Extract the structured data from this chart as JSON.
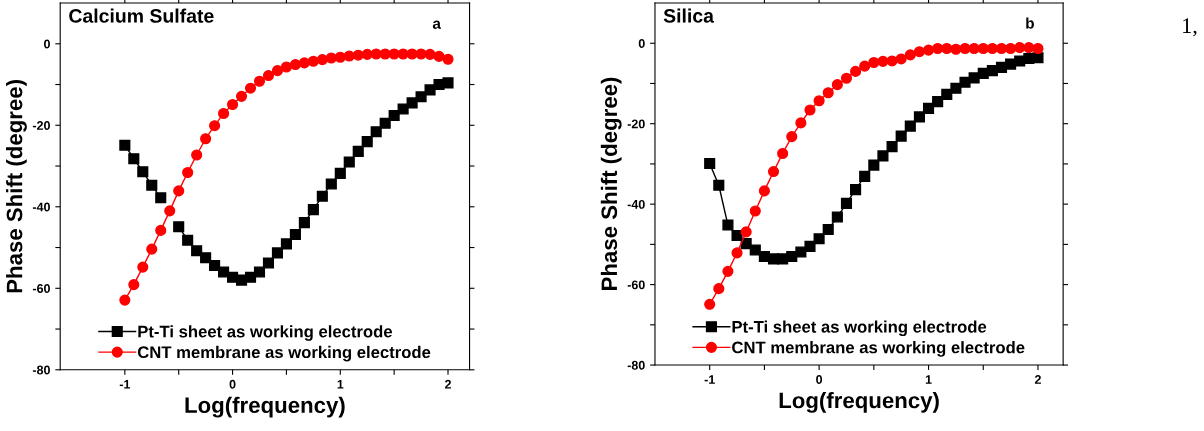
{
  "chart_data": [
    {
      "type": "line",
      "xlabel": "Log(frequency)",
      "ylabel": "Phase Shift (degree)",
      "annotations": [
        "Calcium Sulfate",
        "a"
      ],
      "xlim": [
        -1.6,
        2.2
      ],
      "ylim": [
        -80,
        10
      ],
      "xticks": [
        -1,
        {
          "value": -0.5,
          "label": null
        },
        0,
        {
          "value": 0.5,
          "label": null
        },
        1,
        {
          "value": 1.5,
          "label": null
        },
        2
      ],
      "yticks": [
        -80,
        {
          "value": -70,
          "label": null
        },
        -60,
        {
          "value": -50,
          "label": null
        },
        -40,
        {
          "value": -30,
          "label": null
        },
        -20,
        {
          "value": -10,
          "label": null
        },
        0
      ],
      "x": [
        -1.0,
        -0.9167,
        -0.8333,
        -0.75,
        -0.6667,
        -0.5833,
        -0.5,
        -0.4167,
        -0.3333,
        -0.25,
        -0.1667,
        -0.0833,
        0.0,
        0.0833,
        0.1667,
        0.25,
        0.3333,
        0.4167,
        0.5,
        0.5833,
        0.6667,
        0.75,
        0.8333,
        0.9167,
        1.0,
        1.0833,
        1.1667,
        1.25,
        1.3333,
        1.4167,
        1.5,
        1.5833,
        1.6667,
        1.75,
        1.8333,
        1.9167,
        2.0
      ],
      "series": [
        {
          "name": "Pt-Ti sheet as working electrode",
          "color": "#000000",
          "marker": "square",
          "values": [
            -24.9,
            -28.2,
            -31.4,
            -34.7,
            -37.8,
            null,
            -44.9,
            -48.2,
            -50.8,
            -52.5,
            -54.4,
            -56.0,
            -57.3,
            -58.0,
            -57.3,
            -56.0,
            -53.8,
            -51.3,
            -49.1,
            -46.8,
            -43.9,
            -40.7,
            -37.4,
            -34.4,
            -31.8,
            -29.0,
            -26.4,
            -24.0,
            -21.6,
            -19.5,
            -17.6,
            -16.0,
            -14.5,
            -13.0,
            -11.3,
            -10.0,
            -9.6
          ]
        },
        {
          "name": "CNT membrane as working electrode",
          "color": "#ff0000",
          "marker": "circle",
          "values": [
            -62.9,
            -59.1,
            -54.8,
            -50.4,
            -45.8,
            -41.0,
            -36.1,
            -31.6,
            -27.3,
            -23.3,
            -20.1,
            -17.1,
            -14.9,
            -12.9,
            -10.9,
            -9.2,
            -7.8,
            -6.6,
            -5.7,
            -5.1,
            -4.7,
            -4.3,
            -3.9,
            -3.5,
            -3.3,
            -3.0,
            -2.8,
            -2.6,
            -2.5,
            -2.5,
            -2.5,
            -2.5,
            -2.5,
            -2.5,
            -2.6,
            -3.1,
            -3.8
          ]
        }
      ],
      "legend": "bottom",
      "grid": false
    },
    {
      "type": "line",
      "xlabel": "Log(frequency)",
      "ylabel": "Phase Shift (degree)",
      "annotations": [
        "Silica",
        "b",
        "1,"
      ],
      "xlim": [
        -1.5,
        2.23
      ],
      "ylim": [
        -80,
        10
      ],
      "xticks": [
        -1,
        {
          "value": -0.5,
          "label": null
        },
        0,
        {
          "value": 0.5,
          "label": null
        },
        1,
        {
          "value": 1.5,
          "label": null
        },
        2
      ],
      "yticks": [
        -80,
        {
          "value": -70,
          "label": null
        },
        -60,
        {
          "value": -50,
          "label": null
        },
        -40,
        {
          "value": -30,
          "label": null
        },
        -20,
        {
          "value": -10,
          "label": null
        },
        0
      ],
      "x": [
        -1.0,
        -0.9167,
        -0.8333,
        -0.75,
        -0.6667,
        -0.5833,
        -0.5,
        -0.4167,
        -0.3333,
        -0.25,
        -0.1667,
        -0.0833,
        0.0,
        0.0833,
        0.1667,
        0.25,
        0.3333,
        0.4167,
        0.5,
        0.5833,
        0.6667,
        0.75,
        0.8333,
        0.9167,
        1.0,
        1.0833,
        1.1667,
        1.25,
        1.3333,
        1.4167,
        1.5,
        1.5833,
        1.6667,
        1.75,
        1.8333,
        1.9167,
        2.0
      ],
      "series": [
        {
          "name": "Pt-Ti sheet as working electrode",
          "color": "#000000",
          "marker": "square",
          "values": [
            -29.9,
            -35.3,
            -45.2,
            -47.8,
            -49.8,
            -51.4,
            -53.0,
            -53.6,
            -53.6,
            -53.0,
            -51.9,
            -50.5,
            -48.6,
            -46.3,
            -43.2,
            -39.8,
            -36.4,
            -33.1,
            -30.3,
            -28.0,
            -25.7,
            -23.1,
            -20.6,
            -18.3,
            -16.2,
            -14.5,
            -12.7,
            -11.2,
            -9.7,
            -8.6,
            -7.5,
            -6.8,
            -6.0,
            -5.2,
            -4.4,
            -3.8,
            -3.6
          ]
        },
        {
          "name": "CNT membrane as working electrode",
          "color": "#ff0000",
          "marker": "circle",
          "values": [
            -64.9,
            -61.0,
            -56.7,
            -52.1,
            -46.9,
            -41.7,
            -36.7,
            -31.9,
            -27.4,
            -23.2,
            -19.8,
            -16.6,
            -14.3,
            -12.3,
            -10.3,
            -8.7,
            -7.0,
            -5.7,
            -4.8,
            -4.5,
            -4.4,
            -3.9,
            -2.9,
            -2.1,
            -1.7,
            -1.3,
            -1.3,
            -1.5,
            -1.3,
            -1.3,
            -1.3,
            -1.3,
            -1.3,
            -1.3,
            -1.1,
            -1.1,
            -1.3
          ]
        }
      ],
      "legend": "bottom",
      "grid": false
    }
  ]
}
